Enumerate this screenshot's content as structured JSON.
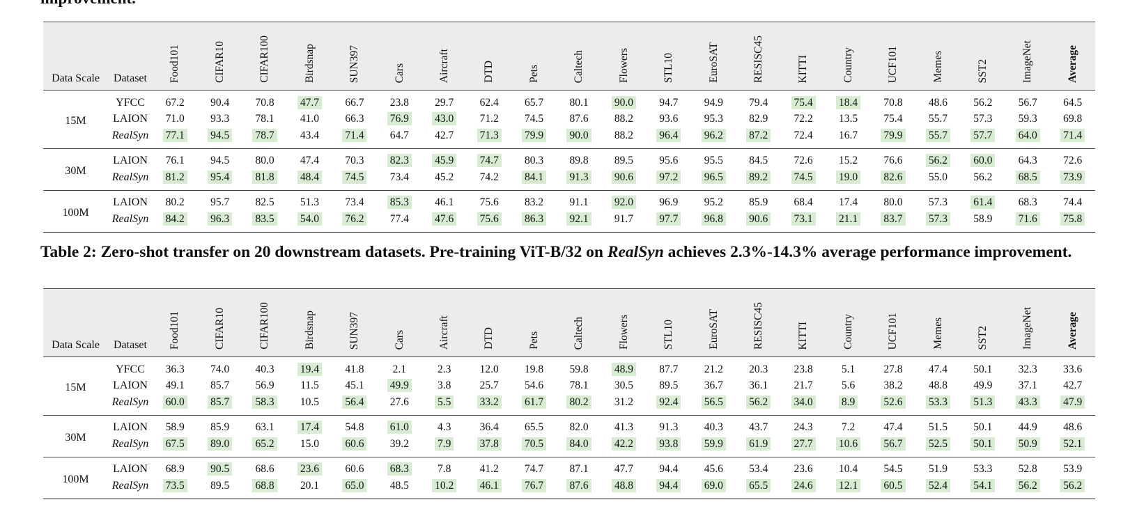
{
  "top_caption": "improvement.",
  "caption_2": {
    "prefix": "Table 2: Zero-shot transfer on 20 downstream datasets. Pre-training ViT-B/32 on ",
    "emph": "RealSyn",
    "suffix": " achieves 2.3%-14.3% average performance improvement."
  },
  "columns": {
    "scale": "Data Scale",
    "dataset": "Dataset",
    "metrics": [
      "Food101",
      "CIFAR10",
      "CIFAR100",
      "Birdsnap",
      "SUN397",
      "Cars",
      "Aircraft",
      "DTD",
      "Pets",
      "Caltech",
      "Flowers",
      "STL10",
      "EuroSAT",
      "RESISC45",
      "KITTI",
      "Country",
      "UCF101",
      "Memes",
      "SST2",
      "ImageNet",
      "Average"
    ]
  },
  "table_1": {
    "groups": [
      {
        "scale": "15M",
        "rows": [
          {
            "dataset": "YFCC",
            "values": [
              "67.2",
              "90.4",
              "70.8",
              "47.7",
              "66.7",
              "23.8",
              "29.7",
              "62.4",
              "65.7",
              "80.1",
              "90.0",
              "94.7",
              "94.9",
              "79.4",
              "75.4",
              "18.4",
              "70.8",
              "48.6",
              "56.2",
              "56.7",
              "64.5"
            ],
            "highlight": [
              3,
              10,
              14,
              15
            ]
          },
          {
            "dataset": "LAION",
            "values": [
              "71.0",
              "93.3",
              "78.1",
              "41.0",
              "66.3",
              "76.9",
              "43.0",
              "71.2",
              "74.5",
              "87.6",
              "88.2",
              "93.6",
              "95.3",
              "82.9",
              "72.2",
              "13.5",
              "75.4",
              "55.7",
              "57.3",
              "59.3",
              "69.8"
            ],
            "highlight": [
              5,
              6
            ]
          },
          {
            "dataset": "RealSyn",
            "italic": true,
            "values": [
              "77.1",
              "94.5",
              "78.7",
              "43.4",
              "71.4",
              "64.7",
              "42.7",
              "71.3",
              "79.9",
              "90.0",
              "88.2",
              "96.4",
              "96.2",
              "87.2",
              "72.4",
              "16.7",
              "79.9",
              "55.7",
              "57.7",
              "64.0",
              "71.4"
            ],
            "highlight": [
              0,
              1,
              2,
              4,
              7,
              8,
              9,
              11,
              12,
              13,
              16,
              17,
              18,
              19,
              20
            ]
          }
        ]
      },
      {
        "scale": "30M",
        "rows": [
          {
            "dataset": "LAION",
            "values": [
              "76.1",
              "94.5",
              "80.0",
              "47.4",
              "70.3",
              "82.3",
              "45.9",
              "74.7",
              "80.3",
              "89.8",
              "89.5",
              "95.6",
              "95.5",
              "84.5",
              "72.6",
              "15.2",
              "76.6",
              "56.2",
              "60.0",
              "64.3",
              "72.6"
            ],
            "highlight": [
              5,
              6,
              7,
              17,
              18
            ]
          },
          {
            "dataset": "RealSyn",
            "italic": true,
            "values": [
              "81.2",
              "95.4",
              "81.8",
              "48.4",
              "74.5",
              "73.4",
              "45.2",
              "74.2",
              "84.1",
              "91.3",
              "90.6",
              "97.2",
              "96.5",
              "89.2",
              "74.5",
              "19.0",
              "82.6",
              "55.0",
              "56.2",
              "68.5",
              "73.9"
            ],
            "highlight": [
              0,
              1,
              2,
              3,
              4,
              8,
              9,
              10,
              11,
              12,
              13,
              14,
              15,
              16,
              19,
              20
            ]
          }
        ]
      },
      {
        "scale": "100M",
        "rows": [
          {
            "dataset": "LAION",
            "values": [
              "80.2",
              "95.7",
              "82.5",
              "51.3",
              "73.4",
              "85.3",
              "46.1",
              "75.6",
              "83.2",
              "91.1",
              "92.0",
              "96.9",
              "95.2",
              "85.9",
              "68.4",
              "17.4",
              "80.0",
              "57.3",
              "61.4",
              "68.3",
              "74.4"
            ],
            "highlight": [
              5,
              10,
              18
            ]
          },
          {
            "dataset": "RealSyn",
            "italic": true,
            "values": [
              "84.2",
              "96.3",
              "83.5",
              "54.0",
              "76.2",
              "77.4",
              "47.6",
              "75.6",
              "86.3",
              "92.1",
              "91.7",
              "97.7",
              "96.8",
              "90.6",
              "73.1",
              "21.1",
              "83.7",
              "57.3",
              "58.9",
              "71.6",
              "75.8"
            ],
            "highlight": [
              0,
              1,
              2,
              3,
              4,
              6,
              7,
              8,
              9,
              11,
              12,
              13,
              14,
              15,
              16,
              17,
              19,
              20
            ]
          }
        ]
      }
    ]
  },
  "table_2": {
    "groups": [
      {
        "scale": "15M",
        "rows": [
          {
            "dataset": "YFCC",
            "values": [
              "36.3",
              "74.0",
              "40.3",
              "19.4",
              "41.8",
              "2.1",
              "2.3",
              "12.0",
              "19.8",
              "59.8",
              "48.9",
              "87.7",
              "21.2",
              "20.3",
              "23.8",
              "5.1",
              "27.8",
              "47.4",
              "50.1",
              "32.3",
              "33.6"
            ],
            "highlight": [
              3,
              10
            ]
          },
          {
            "dataset": "LAION",
            "values": [
              "49.1",
              "85.7",
              "56.9",
              "11.5",
              "45.1",
              "49.9",
              "3.8",
              "25.7",
              "54.6",
              "78.1",
              "30.5",
              "89.5",
              "36.7",
              "36.1",
              "21.7",
              "5.6",
              "38.2",
              "48.8",
              "49.9",
              "37.1",
              "42.7"
            ],
            "highlight": [
              5
            ]
          },
          {
            "dataset": "RealSyn",
            "italic": true,
            "values": [
              "60.0",
              "85.7",
              "58.3",
              "10.5",
              "56.4",
              "27.6",
              "5.5",
              "33.2",
              "61.7",
              "80.2",
              "31.2",
              "92.4",
              "56.5",
              "56.2",
              "34.0",
              "8.9",
              "52.6",
              "53.3",
              "51.3",
              "43.3",
              "47.9"
            ],
            "highlight": [
              0,
              1,
              2,
              4,
              6,
              7,
              8,
              9,
              11,
              12,
              13,
              14,
              15,
              16,
              17,
              18,
              19,
              20
            ]
          }
        ]
      },
      {
        "scale": "30M",
        "rows": [
          {
            "dataset": "LAION",
            "values": [
              "58.9",
              "85.9",
              "63.1",
              "17.4",
              "54.8",
              "61.0",
              "4.3",
              "36.4",
              "65.5",
              "82.0",
              "41.3",
              "91.3",
              "40.3",
              "43.7",
              "24.3",
              "7.2",
              "47.4",
              "51.5",
              "50.1",
              "44.9",
              "48.6"
            ],
            "highlight": [
              3,
              5
            ]
          },
          {
            "dataset": "RealSyn",
            "italic": true,
            "values": [
              "67.5",
              "89.0",
              "65.2",
              "15.0",
              "60.6",
              "39.2",
              "7.9",
              "37.8",
              "70.5",
              "84.0",
              "42.2",
              "93.8",
              "59.9",
              "61.9",
              "27.7",
              "10.6",
              "56.7",
              "52.5",
              "50.1",
              "50.9",
              "52.1"
            ],
            "highlight": [
              0,
              1,
              2,
              4,
              6,
              7,
              8,
              9,
              10,
              11,
              12,
              13,
              14,
              15,
              16,
              17,
              18,
              19,
              20
            ]
          }
        ]
      },
      {
        "scale": "100M",
        "rows": [
          {
            "dataset": "LAION",
            "values": [
              "68.9",
              "90.5",
              "68.6",
              "23.6",
              "60.6",
              "68.3",
              "7.8",
              "41.2",
              "74.7",
              "87.1",
              "47.7",
              "94.4",
              "45.6",
              "53.4",
              "23.6",
              "10.4",
              "54.5",
              "51.9",
              "53.3",
              "52.8",
              "53.9"
            ],
            "highlight": [
              1,
              3,
              5
            ]
          },
          {
            "dataset": "RealSyn",
            "italic": true,
            "values": [
              "73.5",
              "89.5",
              "68.8",
              "20.1",
              "65.0",
              "48.5",
              "10.2",
              "46.1",
              "76.7",
              "87.6",
              "48.8",
              "94.4",
              "69.0",
              "65.5",
              "24.6",
              "12.1",
              "60.5",
              "52.4",
              "54.1",
              "56.2",
              "56.2"
            ],
            "highlight": [
              0,
              2,
              4,
              6,
              7,
              8,
              9,
              10,
              11,
              12,
              13,
              14,
              15,
              16,
              17,
              18,
              19,
              20
            ]
          }
        ]
      }
    ]
  }
}
